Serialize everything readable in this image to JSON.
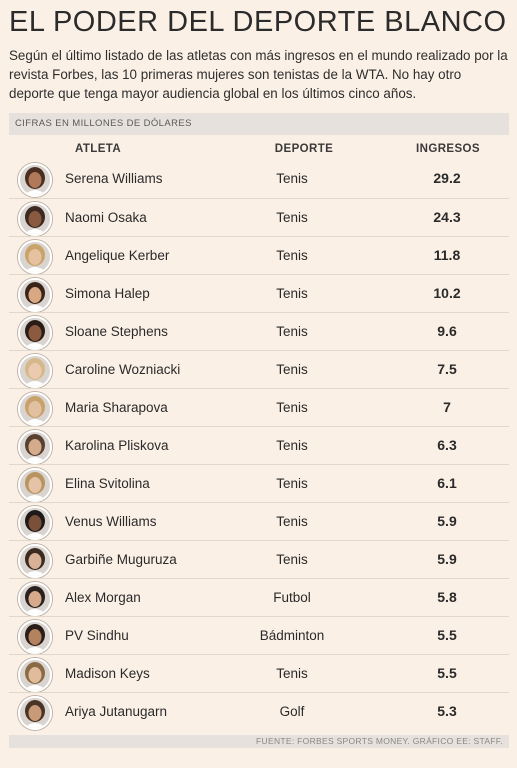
{
  "header": {
    "title": "EL PODER DEL DEPORTE BLANCO",
    "intro": "Según el último listado de las atletas con más ingresos en el mundo realizado por la revista Forbes, las 10 primeras mujeres son tenistas de la WTA. No hay otro deporte que tenga mayor audiencia global en los últimos cinco años."
  },
  "units_label": "CIFRAS EN MILLONES DE DÓLARES",
  "table": {
    "columns": [
      "ATLETA",
      "DEPORTE",
      "INGRESOS"
    ],
    "rows": [
      {
        "name": "Serena Williams",
        "sport": "Tenis",
        "income": "29.2",
        "photo": "portrait-icon"
      },
      {
        "name": "Naomi Osaka",
        "sport": "Tenis",
        "income": "24.3",
        "photo": "portrait-icon"
      },
      {
        "name": "Angelique Kerber",
        "sport": "Tenis",
        "income": "11.8",
        "photo": "portrait-icon"
      },
      {
        "name": "Simona Halep",
        "sport": "Tenis",
        "income": "10.2",
        "photo": "portrait-icon"
      },
      {
        "name": "Sloane Stephens",
        "sport": "Tenis",
        "income": "9.6",
        "photo": "portrait-icon"
      },
      {
        "name": "Caroline Wozniacki",
        "sport": "Tenis",
        "income": "7.5",
        "photo": "portrait-icon"
      },
      {
        "name": "Maria Sharapova",
        "sport": "Tenis",
        "income": "7",
        "photo": "portrait-icon"
      },
      {
        "name": "Karolina Pliskova",
        "sport": "Tenis",
        "income": "6.3",
        "photo": "portrait-icon"
      },
      {
        "name": "Elina Svitolina",
        "sport": "Tenis",
        "income": "6.1",
        "photo": "portrait-icon"
      },
      {
        "name": "Venus Williams",
        "sport": "Tenis",
        "income": "5.9",
        "photo": "portrait-icon"
      },
      {
        "name": "Garbiñe Muguruza",
        "sport": "Tenis",
        "income": "5.9",
        "photo": "portrait-icon"
      },
      {
        "name": "Alex Morgan",
        "sport": "Futbol",
        "income": "5.8",
        "photo": "portrait-icon"
      },
      {
        "name": "PV Sindhu",
        "sport": "Bádminton",
        "income": "5.5",
        "photo": "portrait-icon"
      },
      {
        "name": "Madison Keys",
        "sport": "Tenis",
        "income": "5.5",
        "photo": "portrait-icon"
      },
      {
        "name": "Ariya Jutanugarn",
        "sport": "Golf",
        "income": "5.3",
        "photo": "portrait-icon"
      }
    ]
  },
  "source": "FUENTE: FORBES SPORTS MONEY. GRÁFICO EE: STAFF.",
  "colors": {
    "background": "#fbf0e6",
    "band": "#e6e1dc",
    "text": "#2a2a2a"
  }
}
